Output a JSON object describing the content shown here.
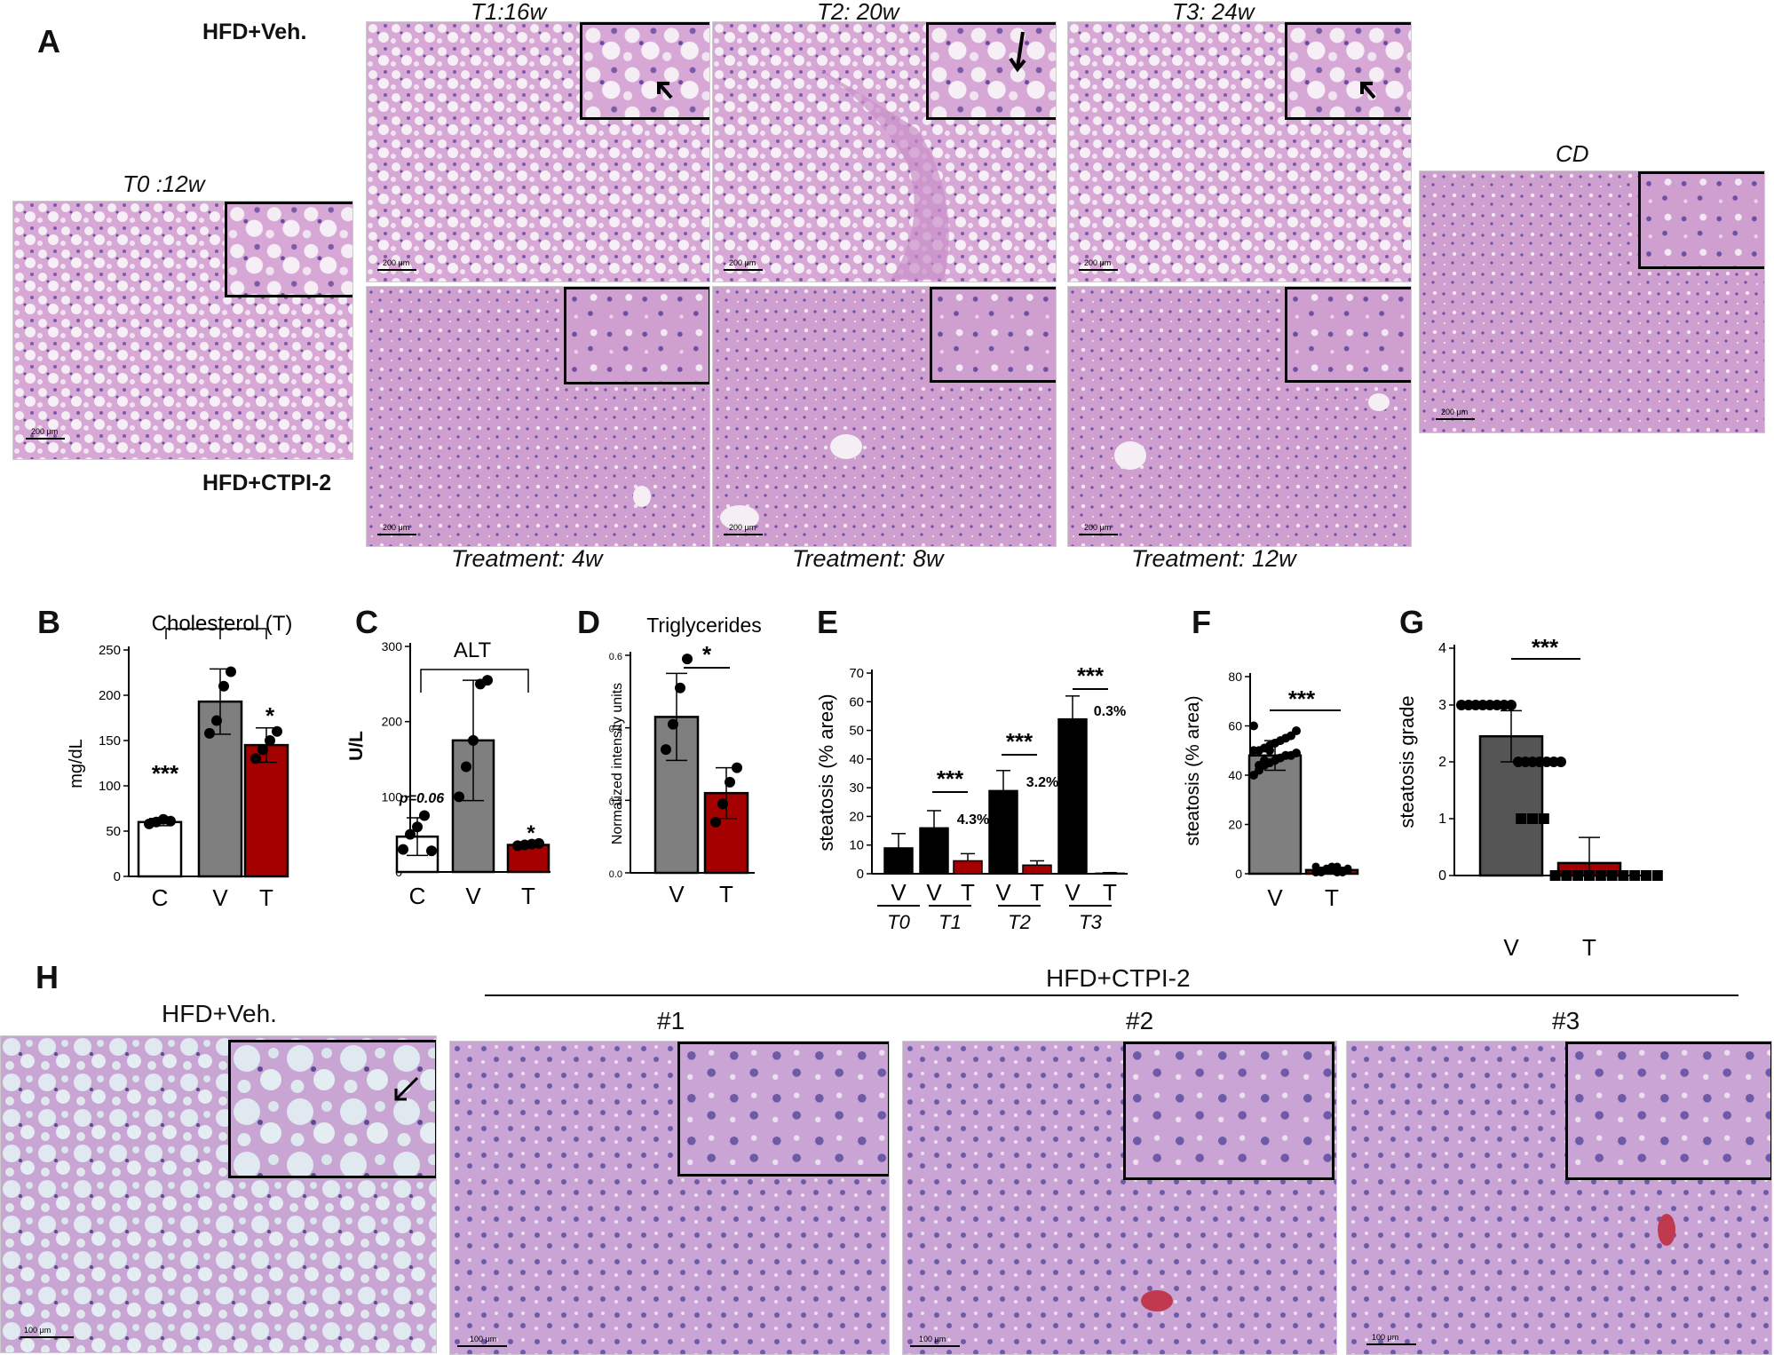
{
  "panel_letters": [
    "A",
    "B",
    "C",
    "D",
    "E",
    "F",
    "G",
    "H"
  ],
  "panelA": {
    "row_top_label": "HFD+Veh.",
    "row_bottom_label": "HFD+CTPI-2",
    "t0_label": "T0 :12w",
    "col_labels": [
      "T1:16w",
      "T2: 20w",
      "T3: 24w"
    ],
    "treatment_labels": [
      "Treatment: 4w",
      "Treatment: 8w",
      "Treatment: 12w"
    ],
    "cd_label": "CD",
    "scale_label": "200 μm"
  },
  "panelH": {
    "veh_label": "HFD+Veh.",
    "ctpi_label": "HFD+CTPI-2",
    "sample_labels": [
      "#1",
      "#2",
      "#3"
    ],
    "scale_label": "100 μm"
  },
  "colors": {
    "white_bar": "#ffffff",
    "gray_bar": "#7f7f7f",
    "red_bar": "#a50000",
    "black_bar": "#000000",
    "tissue": "#d9a8d6",
    "inset_bg": "#e7bfe2"
  },
  "chart_data": [
    {
      "id": "B",
      "type": "bar",
      "title": "Cholesterol (T)",
      "ylabel": "mg/dL",
      "categories": [
        "C",
        "V",
        "T"
      ],
      "values": [
        60,
        193,
        145
      ],
      "errors": [
        4,
        36,
        19
      ],
      "bar_colors": [
        "#ffffff",
        "#7f7f7f",
        "#a50000"
      ],
      "points": [
        [
          58,
          60,
          63,
          61
        ],
        [
          158,
          172,
          210,
          226
        ],
        [
          130,
          140,
          150,
          160
        ]
      ],
      "ylim": [
        0,
        250
      ],
      "yticks": [
        0,
        50,
        100,
        150,
        200,
        250
      ],
      "significance": [
        "***",
        "",
        "*"
      ]
    },
    {
      "id": "C",
      "type": "bar",
      "title": "ALT",
      "ylabel": "U/L",
      "categories": [
        "C",
        "V",
        "T"
      ],
      "values": [
        47,
        175,
        36
      ],
      "errors": [
        25,
        80,
        2
      ],
      "bar_colors": [
        "#ffffff",
        "#7f7f7f",
        "#a50000"
      ],
      "points": [
        [
          30,
          50,
          60,
          75,
          28
        ],
        [
          100,
          140,
          175,
          250,
          255
        ],
        [
          35,
          36,
          37,
          38
        ]
      ],
      "ylim": [
        0,
        300
      ],
      "yticks": [
        0,
        100,
        200,
        300
      ],
      "annotations": [
        "p=0.06",
        "",
        "*"
      ]
    },
    {
      "id": "D",
      "type": "bar",
      "title": "Triglycerides",
      "ylabel": "Normalized intensity units",
      "categories": [
        "V",
        "T"
      ],
      "values": [
        0.43,
        0.22
      ],
      "errors": [
        0.12,
        0.07
      ],
      "bar_colors": [
        "#7f7f7f",
        "#a50000"
      ],
      "points": [
        [
          0.34,
          0.41,
          0.51,
          0.59
        ],
        [
          0.14,
          0.19,
          0.25,
          0.29
        ]
      ],
      "ylim": [
        0,
        0.6
      ],
      "yticks": [
        "0.0",
        "0.2",
        "0.4",
        "0.6"
      ],
      "significance": "*"
    },
    {
      "id": "E",
      "type": "bar",
      "ylabel": "steatosis (% area)",
      "groups": [
        "T0",
        "T1",
        "T2",
        "T3"
      ],
      "bar_labels": [
        "V",
        "V",
        "T",
        "V",
        "T",
        "V",
        "T"
      ],
      "series": [
        {
          "name": "V",
          "values": [
            9,
            16,
            29,
            54
          ],
          "errors": [
            5,
            6,
            7,
            8
          ]
        },
        {
          "name": "T",
          "values": [
            null,
            4.5,
            3,
            0.2
          ],
          "errors": [
            null,
            2.5,
            1.5,
            0.2
          ]
        }
      ],
      "ylim": [
        0,
        70
      ],
      "yticks": [
        0,
        10,
        20,
        30,
        40,
        50,
        60,
        70
      ],
      "significance": [
        "",
        "***",
        "***",
        "***"
      ],
      "percent_labels": [
        "",
        "4.3%",
        "3.2%",
        "0.3%"
      ]
    },
    {
      "id": "F",
      "type": "bar",
      "ylabel": "steatosis (% area)",
      "categories": [
        "V",
        "T"
      ],
      "values": [
        48,
        1.5
      ],
      "errors": [
        6,
        1
      ],
      "bar_colors": [
        "#7f7f7f",
        "#a50000"
      ],
      "ylim": [
        0,
        80
      ],
      "yticks": [
        0,
        20,
        40,
        60,
        80
      ],
      "significance": "***"
    },
    {
      "id": "G",
      "type": "bar",
      "ylabel": "steatosis grade",
      "categories": [
        "V",
        "T"
      ],
      "values": [
        2.45,
        0.22
      ],
      "errors": [
        0.45,
        0.45
      ],
      "bar_colors": [
        "#555555",
        "#a50000"
      ],
      "points": [
        [
          3,
          3,
          3,
          3,
          3,
          3,
          3,
          3,
          2,
          2,
          2,
          2,
          2,
          2,
          2
        ],
        [
          1,
          1,
          1,
          0,
          0,
          0,
          0,
          0,
          0,
          0,
          0,
          0,
          0
        ]
      ],
      "ylim": [
        0,
        4
      ],
      "yticks": [
        0,
        1,
        2,
        3,
        4
      ],
      "significance": "***"
    }
  ]
}
